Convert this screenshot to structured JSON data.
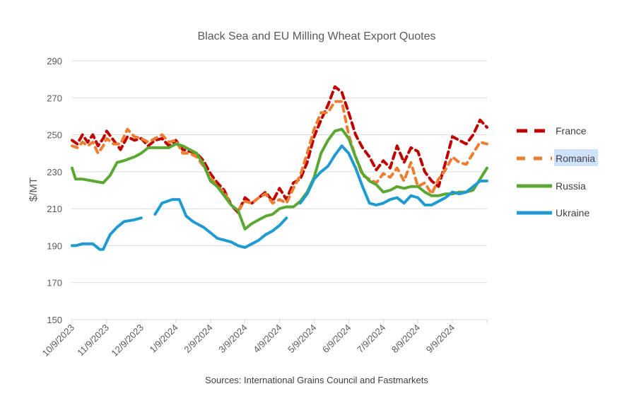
{
  "chart_data": {
    "type": "line",
    "title": "Black Sea and EU Milling Wheat Export Quotes",
    "xlabel": "",
    "ylabel": "$/MT",
    "source": "Sources: International Grains Council and Fastmarkets",
    "ylim": [
      150,
      290
    ],
    "yticks": [
      150,
      170,
      190,
      210,
      230,
      250,
      270,
      290
    ],
    "grid": true,
    "legend_position": "right",
    "x_tick_labels": [
      "10/9/2023",
      "11/9/2023",
      "12/9/2023",
      "1/9/2024",
      "2/9/2024",
      "3/9/2024",
      "4/9/2024",
      "5/9/2024",
      "6/9/2024",
      "7/9/2024",
      "8/9/2024",
      "9/9/2024"
    ],
    "x_range_months": [
      0,
      12
    ],
    "series": [
      {
        "name": "France",
        "color": "#c00000",
        "style": "dashed-long",
        "x": [
          0,
          0.15,
          0.3,
          0.45,
          0.6,
          0.75,
          0.9,
          1.0,
          1.2,
          1.4,
          1.6,
          1.8,
          2.0,
          2.2,
          2.4,
          2.6,
          2.8,
          3.0,
          3.2,
          3.4,
          3.6,
          3.8,
          4.0,
          4.2,
          4.4,
          4.6,
          4.8,
          5.0,
          5.2,
          5.4,
          5.6,
          5.8,
          6.0,
          6.2,
          6.4,
          6.6,
          6.8,
          7.0,
          7.2,
          7.4,
          7.6,
          7.8,
          8.0,
          8.2,
          8.4,
          8.6,
          8.8,
          9.0,
          9.2,
          9.4,
          9.6,
          9.8,
          10.0,
          10.2,
          10.4,
          10.6,
          10.8,
          11.0,
          11.2,
          11.4,
          11.6,
          11.8,
          12.0
        ],
        "values": [
          247,
          245,
          250,
          246,
          250,
          244,
          248,
          252,
          247,
          242,
          249,
          247,
          248,
          244,
          247,
          248,
          244,
          247,
          242,
          241,
          240,
          236,
          229,
          224,
          220,
          212,
          208,
          216,
          213,
          216,
          219,
          214,
          221,
          215,
          224,
          226,
          235,
          249,
          258,
          266,
          276,
          273,
          262,
          250,
          243,
          238,
          231,
          236,
          232,
          244,
          235,
          243,
          241,
          230,
          225,
          222,
          235,
          249,
          247,
          245,
          250,
          258,
          254
        ]
      },
      {
        "name": "Romania",
        "color": "#ed7d31",
        "style": "dashed",
        "x": [
          0,
          0.15,
          0.3,
          0.45,
          0.6,
          0.75,
          0.9,
          1.0,
          1.2,
          1.4,
          1.6,
          1.8,
          2.0,
          2.2,
          2.4,
          2.6,
          2.8,
          3.0,
          3.2,
          3.4,
          3.6,
          3.8,
          4.0,
          4.2,
          4.4,
          4.6,
          4.8,
          5.0,
          5.2,
          5.4,
          5.6,
          5.8,
          6.0,
          6.2,
          6.4,
          6.6,
          6.8,
          7.0,
          7.2,
          7.4,
          7.6,
          7.8,
          8.0,
          8.2,
          8.4,
          8.6,
          8.8,
          9.0,
          9.2,
          9.4,
          9.6,
          9.8,
          10.0,
          10.2,
          10.4,
          10.6,
          10.8,
          11.0,
          11.2,
          11.4,
          11.6,
          11.8,
          12.0
        ],
        "values": [
          244,
          243,
          246,
          244,
          246,
          240,
          244,
          248,
          245,
          245,
          253,
          249,
          248,
          246,
          248,
          250,
          246,
          247,
          240,
          240,
          238,
          233,
          227,
          222,
          219,
          212,
          209,
          214,
          213,
          216,
          218,
          213,
          215,
          213,
          221,
          228,
          240,
          253,
          262,
          262,
          268,
          268,
          250,
          238,
          228,
          226,
          224,
          229,
          227,
          232,
          225,
          235,
          222,
          224,
          218,
          226,
          231,
          238,
          235,
          234,
          240,
          246,
          245
        ]
      },
      {
        "name": "Russia",
        "color": "#5aa832",
        "style": "solid",
        "x": [
          0,
          0.1,
          0.3,
          0.6,
          0.9,
          1.1,
          1.3,
          1.5,
          1.8,
          2.0,
          2.2,
          2.5,
          2.8,
          3.0,
          3.2,
          3.4,
          3.6,
          3.8,
          4.0,
          4.2,
          4.4,
          4.6,
          4.8,
          5.0,
          5.2,
          5.4,
          5.6,
          5.8,
          6.0,
          6.2,
          6.4,
          6.6,
          6.8,
          7.0,
          7.2,
          7.4,
          7.6,
          7.8,
          8.0,
          8.2,
          8.4,
          8.6,
          8.8,
          9.0,
          9.2,
          9.4,
          9.6,
          9.8,
          10.0,
          10.2,
          10.4,
          10.6,
          10.8,
          11.0,
          11.2,
          11.4,
          11.6,
          11.8,
          12.0
        ],
        "values": [
          232,
          226,
          226,
          225,
          224,
          228,
          235,
          236,
          238,
          240,
          243,
          243,
          243,
          245,
          244,
          242,
          240,
          234,
          225,
          222,
          217,
          212,
          209,
          199,
          202,
          204,
          206,
          207,
          210,
          211,
          211,
          214,
          219,
          227,
          240,
          247,
          252,
          253,
          248,
          238,
          229,
          225,
          223,
          219,
          220,
          222,
          221,
          222,
          222,
          219,
          217,
          217,
          218,
          218,
          219,
          219,
          220,
          226,
          232
        ]
      },
      {
        "name": "Ukraine",
        "color": "#1f9bd1",
        "style": "solid-gapped",
        "x": [
          0,
          0.1,
          0.3,
          0.6,
          0.8,
          0.9,
          1.1,
          1.3,
          1.5,
          1.8,
          2.0,
          2.2,
          2.4,
          2.6,
          2.9,
          3.1,
          3.3,
          3.5,
          3.7,
          3.8,
          4.0,
          4.2,
          4.4,
          4.6,
          4.8,
          5.0,
          5.2,
          5.4,
          5.6,
          5.8,
          6.0,
          6.2,
          6.4,
          6.6,
          6.8,
          7.0,
          7.2,
          7.4,
          7.6,
          7.8,
          8.0,
          8.2,
          8.4,
          8.6,
          8.8,
          9.0,
          9.2,
          9.4,
          9.6,
          9.8,
          10.0,
          10.2,
          10.4,
          10.6,
          10.8,
          11.0,
          11.2,
          11.4,
          11.6,
          11.8,
          12.0
        ],
        "values": [
          190,
          190,
          191,
          191,
          188,
          188,
          196,
          200,
          203,
          204,
          205,
          null,
          207,
          213,
          215,
          215,
          206,
          203,
          201,
          200,
          197,
          194,
          193,
          192,
          190,
          189,
          191,
          193,
          196,
          198,
          201,
          205,
          null,
          213,
          218,
          226,
          230,
          233,
          239,
          244,
          240,
          232,
          222,
          213,
          212,
          213,
          215,
          216,
          213,
          217,
          216,
          212,
          212,
          214,
          216,
          219,
          218,
          219,
          222,
          225,
          225
        ]
      }
    ]
  }
}
